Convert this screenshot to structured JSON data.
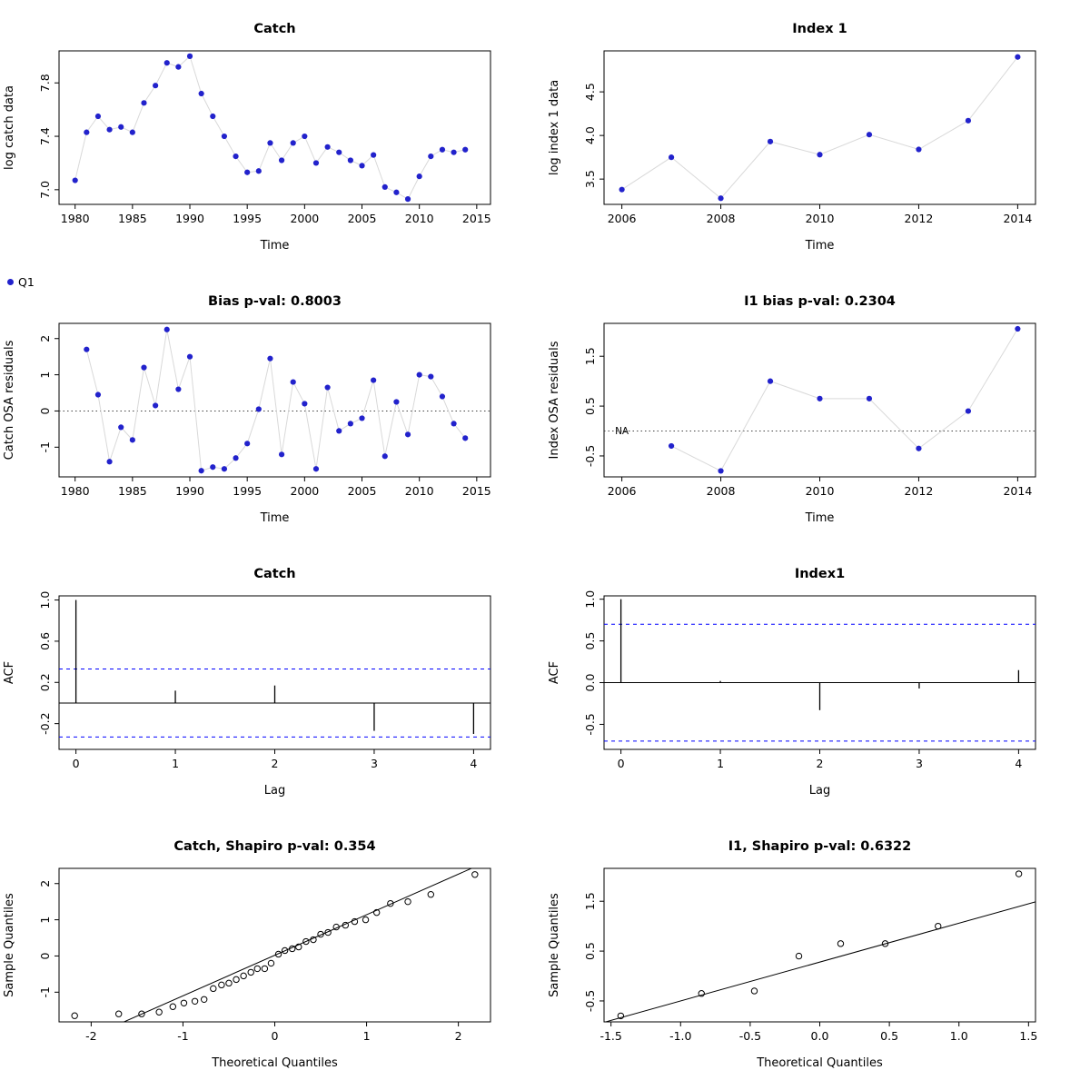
{
  "colors": {
    "point_blue": "#2222cc",
    "title_green": "#228B22",
    "title_black": "#000000",
    "conf_dash_blue": "#0000ff",
    "connect_gray": "#d9d9d9",
    "zero_dotted": "#444444",
    "axis_black": "#000000"
  },
  "legend": {
    "label": "Q1"
  },
  "chart_data": [
    {
      "id": "catch-data",
      "type": "line",
      "kind": "points",
      "row": 0,
      "col": 0,
      "title": "Catch",
      "title_color": "black",
      "xlabel": "Time",
      "ylabel": "log catch data",
      "xlim": [
        1978.6,
        2016.2
      ],
      "ylim": [
        6.89,
        8.04
      ],
      "xticks": [
        1980,
        1985,
        1990,
        1995,
        2000,
        2005,
        2010,
        2015
      ],
      "xtick_labels": [
        "1980",
        "1985",
        "1990",
        "1995",
        "2000",
        "2005",
        "2010",
        "2015"
      ],
      "yticks": [
        7.0,
        7.4,
        7.8
      ],
      "ytick_labels": [
        "7.0",
        "7.4",
        "7.8"
      ],
      "connect": true,
      "x": [
        1980,
        1981,
        1982,
        1983,
        1984,
        1985,
        1986,
        1987,
        1988,
        1989,
        1990,
        1991,
        1992,
        1993,
        1994,
        1995,
        1996,
        1997,
        1998,
        1999,
        2000,
        2001,
        2002,
        2003,
        2004,
        2005,
        2006,
        2007,
        2008,
        2009,
        2010,
        2011,
        2012,
        2013,
        2014
      ],
      "y": [
        7.07,
        7.43,
        7.55,
        7.45,
        7.47,
        7.43,
        7.65,
        7.78,
        7.95,
        7.92,
        8.0,
        7.72,
        7.55,
        7.4,
        7.25,
        7.13,
        7.14,
        7.35,
        7.22,
        7.35,
        7.4,
        7.2,
        7.32,
        7.28,
        7.22,
        7.18,
        7.26,
        7.02,
        6.98,
        6.93,
        7.1,
        7.25,
        7.3,
        7.28,
        7.3
      ]
    },
    {
      "id": "index1-data",
      "type": "line",
      "kind": "points",
      "row": 0,
      "col": 1,
      "title": "Index 1",
      "title_color": "black",
      "xlabel": "Time",
      "ylabel": "log index 1 data",
      "xlim": [
        2005.64,
        2014.36
      ],
      "ylim": [
        3.21,
        4.97
      ],
      "xticks": [
        2006,
        2008,
        2010,
        2012,
        2014
      ],
      "xtick_labels": [
        "2006",
        "2008",
        "2010",
        "2012",
        "2014"
      ],
      "yticks": [
        3.5,
        4.0,
        4.5
      ],
      "ytick_labels": [
        "3.5",
        "4.0",
        "4.5"
      ],
      "connect": true,
      "x": [
        2006,
        2007,
        2008,
        2009,
        2010,
        2011,
        2012,
        2013,
        2014
      ],
      "y": [
        3.38,
        3.75,
        3.28,
        3.93,
        3.78,
        4.01,
        3.84,
        4.17,
        4.9
      ]
    },
    {
      "id": "catch-osa-residuals",
      "type": "line",
      "kind": "points",
      "row": 1,
      "col": 0,
      "title": "Bias p-val: 0.8003",
      "title_color": "green",
      "xlabel": "Time",
      "ylabel": "Catch OSA residuals",
      "xlim": [
        1978.6,
        2016.2
      ],
      "ylim": [
        -1.82,
        2.42
      ],
      "xticks": [
        1980,
        1985,
        1990,
        1995,
        2000,
        2005,
        2010,
        2015
      ],
      "xtick_labels": [
        "1980",
        "1985",
        "1990",
        "1995",
        "2000",
        "2005",
        "2010",
        "2015"
      ],
      "yticks": [
        -1,
        0,
        1,
        2
      ],
      "ytick_labels": [
        "-1",
        "0",
        "1",
        "2"
      ],
      "connect": true,
      "zero_line": true,
      "x": [
        1981,
        1982,
        1983,
        1984,
        1985,
        1986,
        1987,
        1988,
        1989,
        1990,
        1991,
        1992,
        1993,
        1994,
        1995,
        1996,
        1997,
        1998,
        1999,
        2000,
        2001,
        2002,
        2003,
        2004,
        2005,
        2006,
        2007,
        2008,
        2009,
        2010,
        2011,
        2012,
        2013,
        2014
      ],
      "y": [
        1.7,
        0.45,
        -1.4,
        -0.45,
        -0.8,
        1.2,
        0.15,
        2.25,
        0.6,
        1.5,
        -1.65,
        -1.55,
        -1.6,
        -1.3,
        -0.9,
        0.05,
        1.45,
        -1.2,
        0.8,
        0.2,
        -1.6,
        0.65,
        -0.55,
        -0.35,
        -0.2,
        0.85,
        -1.25,
        0.25,
        -0.65,
        1.0,
        0.95,
        0.4,
        -0.35,
        -0.75
      ]
    },
    {
      "id": "index1-osa-residuals",
      "type": "line",
      "kind": "points",
      "row": 1,
      "col": 1,
      "title": "I1 bias p-val: 0.2304",
      "title_color": "green",
      "xlabel": "Time",
      "ylabel": "Index OSA residuals",
      "xlim": [
        2005.64,
        2014.36
      ],
      "ylim": [
        -0.92,
        2.16
      ],
      "xticks": [
        2006,
        2008,
        2010,
        2012,
        2014
      ],
      "xtick_labels": [
        "2006",
        "2008",
        "2010",
        "2012",
        "2014"
      ],
      "yticks": [
        -0.5,
        0.5,
        1.5
      ],
      "ytick_labels": [
        "-0.5",
        "0.5",
        "1.5"
      ],
      "connect": true,
      "zero_line": true,
      "na_label": {
        "x": 2006,
        "y": 0,
        "text": "NA"
      },
      "x": [
        2007,
        2008,
        2009,
        2010,
        2011,
        2012,
        2013,
        2014
      ],
      "y": [
        -0.3,
        -0.8,
        1.0,
        0.65,
        0.65,
        -0.35,
        0.4,
        2.05
      ]
    },
    {
      "id": "catch-acf",
      "type": "bar",
      "kind": "acf",
      "row": 2,
      "col": 0,
      "title": "Catch",
      "title_color": "green",
      "xlabel": "Lag",
      "ylabel": "ACF",
      "xlim": [
        -0.17,
        4.17
      ],
      "ylim": [
        -0.45,
        1.04
      ],
      "xticks": [
        0,
        1,
        2,
        3,
        4
      ],
      "xtick_labels": [
        "0",
        "1",
        "2",
        "3",
        "4"
      ],
      "yticks": [
        -0.2,
        0.2,
        0.6,
        1.0
      ],
      "ytick_labels": [
        "-0.2",
        "0.2",
        "0.6",
        "1.0"
      ],
      "lags": [
        0,
        1,
        2,
        3,
        4
      ],
      "values": [
        1.0,
        0.12,
        0.17,
        -0.27,
        -0.3
      ],
      "conf": 0.33
    },
    {
      "id": "index1-acf",
      "type": "bar",
      "kind": "acf",
      "row": 2,
      "col": 1,
      "title": "Index1",
      "title_color": "green",
      "xlabel": "Lag",
      "ylabel": "ACF",
      "xlim": [
        -0.17,
        4.17
      ],
      "ylim": [
        -0.8,
        1.04
      ],
      "xticks": [
        0,
        1,
        2,
        3,
        4
      ],
      "xtick_labels": [
        "0",
        "1",
        "2",
        "3",
        "4"
      ],
      "yticks": [
        -0.5,
        0.0,
        0.5,
        1.0
      ],
      "ytick_labels": [
        "-0.5",
        "0.0",
        "0.5",
        "1.0"
      ],
      "lags": [
        0,
        1,
        2,
        3,
        4
      ],
      "values": [
        1.0,
        0.02,
        -0.33,
        -0.07,
        0.15
      ],
      "conf": 0.7
    },
    {
      "id": "catch-qq",
      "type": "scatter",
      "kind": "qq",
      "row": 3,
      "col": 0,
      "title": "Catch, Shapiro p-val: 0.354",
      "title_color": "green",
      "xlabel": "Theoretical Quantiles",
      "ylabel": "Sample Quantiles",
      "xlim": [
        -2.35,
        2.35
      ],
      "ylim": [
        -1.82,
        2.42
      ],
      "xticks": [
        -2,
        -1,
        0,
        1,
        2
      ],
      "xtick_labels": [
        "-2",
        "-1",
        "0",
        "1",
        "2"
      ],
      "yticks": [
        -1,
        0,
        1,
        2
      ],
      "ytick_labels": [
        "-1",
        "0",
        "1",
        "2"
      ],
      "line": {
        "slope": 1.12,
        "intercept": 0.02
      },
      "x": [
        -2.18,
        -1.7,
        -1.45,
        -1.26,
        -1.11,
        -0.99,
        -0.87,
        -0.77,
        -0.67,
        -0.58,
        -0.5,
        -0.42,
        -0.34,
        -0.26,
        -0.19,
        -0.11,
        -0.04,
        0.04,
        0.11,
        0.19,
        0.26,
        0.34,
        0.42,
        0.5,
        0.58,
        0.67,
        0.77,
        0.87,
        0.99,
        1.11,
        1.26,
        1.45,
        1.7,
        2.18
      ],
      "y": [
        -1.65,
        -1.6,
        -1.6,
        -1.55,
        -1.4,
        -1.3,
        -1.25,
        -1.2,
        -0.9,
        -0.8,
        -0.75,
        -0.65,
        -0.55,
        -0.45,
        -0.35,
        -0.35,
        -0.2,
        0.05,
        0.15,
        0.2,
        0.25,
        0.4,
        0.45,
        0.6,
        0.65,
        0.8,
        0.85,
        0.95,
        1.0,
        1.2,
        1.45,
        1.5,
        1.7,
        2.25
      ]
    },
    {
      "id": "index1-qq",
      "type": "scatter",
      "kind": "qq",
      "row": 3,
      "col": 1,
      "title": "I1, Shapiro p-val: 0.6322",
      "title_color": "green",
      "xlabel": "Theoretical Quantiles",
      "ylabel": "Sample Quantiles",
      "xlim": [
        -1.55,
        1.55
      ],
      "ylim": [
        -0.92,
        2.16
      ],
      "xticks": [
        -1.5,
        -1.0,
        -0.5,
        0.0,
        0.5,
        1.0,
        1.5
      ],
      "xtick_labels": [
        "-1.5",
        "-1.0",
        "-0.5",
        "0.0",
        "0.5",
        "1.0",
        "1.5"
      ],
      "yticks": [
        -0.5,
        0.5,
        1.5
      ],
      "ytick_labels": [
        "-0.5",
        "0.5",
        "1.5"
      ],
      "line": {
        "slope": 0.78,
        "intercept": 0.28
      },
      "x": [
        -1.43,
        -0.85,
        -0.47,
        -0.15,
        0.15,
        0.47,
        0.85,
        1.43
      ],
      "y": [
        -0.8,
        -0.35,
        -0.3,
        0.4,
        0.65,
        0.65,
        1.0,
        2.05
      ]
    }
  ]
}
